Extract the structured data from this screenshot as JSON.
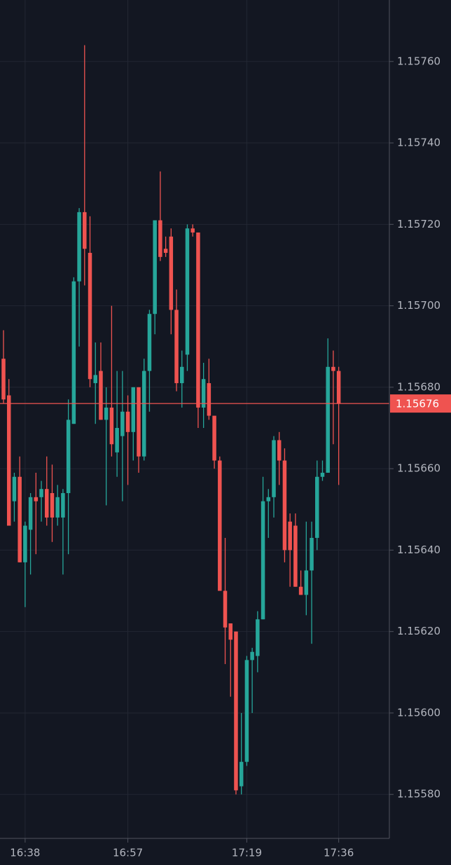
{
  "chart_data": {
    "type": "candlestick",
    "up_color": "#26a69a",
    "down_color": "#ef5350",
    "grid": true,
    "x": [
      "16:34",
      "16:35",
      "16:36",
      "16:37",
      "16:38",
      "16:39",
      "16:40",
      "16:41",
      "16:42",
      "16:43",
      "16:44",
      "16:45",
      "16:46",
      "16:47",
      "16:48",
      "16:49",
      "16:50",
      "16:51",
      "16:52",
      "16:53",
      "16:54",
      "16:55",
      "16:56",
      "16:57",
      "16:58",
      "16:59",
      "17:00",
      "17:01",
      "17:02",
      "17:03",
      "17:04",
      "17:05",
      "17:06",
      "17:07",
      "17:08",
      "17:09",
      "17:10",
      "17:11",
      "17:12",
      "17:13",
      "17:14",
      "17:15",
      "17:16",
      "17:17",
      "17:18",
      "17:19",
      "17:20",
      "17:21",
      "17:22",
      "17:23",
      "17:24",
      "17:25",
      "17:26",
      "17:27",
      "17:28",
      "17:29",
      "17:30",
      "17:31",
      "17:32",
      "17:33",
      "17:34",
      "17:35",
      "17:36"
    ],
    "open": [
      1.15687,
      1.15678,
      1.15652,
      1.15658,
      1.15637,
      1.15645,
      1.15653,
      1.15653,
      1.15655,
      1.15654,
      1.15648,
      1.15648,
      1.15654,
      1.15671,
      1.15706,
      1.15723,
      1.15713,
      1.15681,
      1.15684,
      1.15672,
      1.15675,
      1.15664,
      1.15668,
      1.15674,
      1.15669,
      1.1568,
      1.15663,
      1.15684,
      1.15698,
      1.15721,
      1.15714,
      1.15717,
      1.15699,
      1.15681,
      1.15688,
      1.15719,
      1.15718,
      1.15675,
      1.15681,
      1.15673,
      1.15662,
      1.1563,
      1.15622,
      1.1562,
      1.15582,
      1.15588,
      1.15613,
      1.15614,
      1.15623,
      1.15652,
      1.15653,
      1.15667,
      1.15662,
      1.15647,
      1.15646,
      1.15631,
      1.15629,
      1.15635,
      1.15643,
      1.15658,
      1.15659,
      1.15685,
      1.15684
    ],
    "high": [
      1.15694,
      1.15682,
      1.15659,
      1.15663,
      1.15647,
      1.15654,
      1.15659,
      1.15657,
      1.15663,
      1.15661,
      1.15656,
      1.15655,
      1.15677,
      1.15707,
      1.15724,
      1.15764,
      1.15722,
      1.15691,
      1.15691,
      1.1568,
      1.157,
      1.15684,
      1.15684,
      1.15678,
      1.1568,
      1.1568,
      1.15687,
      1.15699,
      1.15721,
      1.15733,
      1.15717,
      1.15719,
      1.15704,
      1.15689,
      1.1572,
      1.1572,
      1.15718,
      1.15686,
      1.15687,
      1.15673,
      1.15663,
      1.15643,
      1.15622,
      1.1562,
      1.156,
      1.15614,
      1.15616,
      1.15625,
      1.15658,
      1.15655,
      1.15668,
      1.15669,
      1.15665,
      1.15649,
      1.15649,
      1.15635,
      1.15647,
      1.15647,
      1.15662,
      1.15662,
      1.15692,
      1.15689,
      1.15685
    ],
    "low": [
      1.15676,
      1.15646,
      1.15647,
      1.15637,
      1.15626,
      1.15634,
      1.15639,
      1.15647,
      1.15646,
      1.15642,
      1.15646,
      1.15634,
      1.15639,
      1.15671,
      1.1569,
      1.15705,
      1.1568,
      1.15671,
      1.15672,
      1.15651,
      1.15663,
      1.15658,
      1.15652,
      1.15656,
      1.15662,
      1.15659,
      1.15662,
      1.15674,
      1.15693,
      1.15711,
      1.15712,
      1.15693,
      1.15679,
      1.15675,
      1.15684,
      1.15717,
      1.1567,
      1.1567,
      1.15672,
      1.1566,
      1.1563,
      1.15612,
      1.15604,
      1.1558,
      1.1558,
      1.15587,
      1.156,
      1.1561,
      1.15623,
      1.15643,
      1.15648,
      1.15656,
      1.15637,
      1.15631,
      1.15631,
      1.15629,
      1.15624,
      1.15617,
      1.1564,
      1.15657,
      1.15659,
      1.15666,
      1.15656
    ],
    "close": [
      1.15677,
      1.15646,
      1.15658,
      1.15637,
      1.15646,
      1.15653,
      1.15652,
      1.15655,
      1.15648,
      1.15648,
      1.15653,
      1.15654,
      1.15672,
      1.15706,
      1.15723,
      1.15714,
      1.15682,
      1.15683,
      1.15672,
      1.15675,
      1.15666,
      1.1567,
      1.15674,
      1.15669,
      1.1568,
      1.15663,
      1.15684,
      1.15698,
      1.15721,
      1.15712,
      1.15713,
      1.15699,
      1.15681,
      1.15685,
      1.15719,
      1.15718,
      1.15675,
      1.15682,
      1.15673,
      1.15662,
      1.1563,
      1.15621,
      1.15618,
      1.15581,
      1.15588,
      1.15613,
      1.15615,
      1.15623,
      1.15652,
      1.15653,
      1.15667,
      1.15662,
      1.1564,
      1.1564,
      1.15631,
      1.15629,
      1.15635,
      1.15643,
      1.15658,
      1.15659,
      1.15685,
      1.15684,
      1.15676
    ],
    "ylim": [
      1.155692,
      1.157751
    ],
    "yticks": [
      {
        "value": 1.1558,
        "label": "1.15580"
      },
      {
        "value": 1.156,
        "label": "1.15600"
      },
      {
        "value": 1.1562,
        "label": "1.15620"
      },
      {
        "value": 1.1564,
        "label": "1.15640"
      },
      {
        "value": 1.1566,
        "label": "1.15660"
      },
      {
        "value": 1.1568,
        "label": "1.15680"
      },
      {
        "value": 1.157,
        "label": "1.15700"
      },
      {
        "value": 1.1572,
        "label": "1.15720"
      },
      {
        "value": 1.1574,
        "label": "1.15740"
      },
      {
        "value": 1.1576,
        "label": "1.15760"
      }
    ],
    "xticks": [
      "16:38",
      "16:57",
      "17:19",
      "17:36"
    ],
    "last_price": 1.15676
  }
}
